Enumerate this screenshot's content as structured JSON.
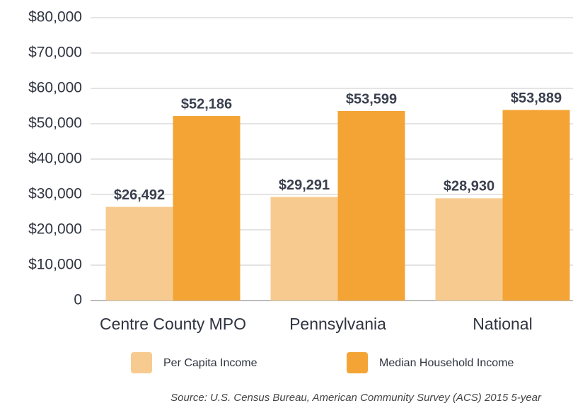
{
  "chart_data": {
    "type": "bar",
    "categories": [
      "Centre County MPO",
      "Pennsylvania",
      "National"
    ],
    "series": [
      {
        "name": "Per Capita Income",
        "color": "#f7cb8f",
        "values": [
          26492,
          29291,
          28930
        ],
        "value_labels": [
          "$26,492",
          "$29,291",
          "$28,930"
        ]
      },
      {
        "name": "Median Household Income",
        "color": "#f4a435",
        "values": [
          52186,
          53599,
          53889
        ],
        "value_labels": [
          "$52,186",
          "$53,599",
          "$53,889"
        ]
      }
    ],
    "ylim": [
      0,
      80000
    ],
    "yticks": [
      0,
      {
        "value": 10000,
        "label": "$10,000"
      },
      {
        "value": 20000,
        "label": "$20,000"
      },
      {
        "value": 30000,
        "label": "$30,000"
      },
      {
        "value": 40000,
        "label": "$40,000"
      },
      {
        "value": 50000,
        "label": "$50,000"
      },
      {
        "value": 60000,
        "label": "$60,000"
      },
      {
        "value": 70000,
        "label": "$70,000"
      },
      {
        "value": 80000,
        "label": "$80,000"
      }
    ],
    "grid": true,
    "legend": "bottom",
    "source": "Source: U.S. Census Bureau, American Community Survey (ACS) 2015  5-year"
  }
}
